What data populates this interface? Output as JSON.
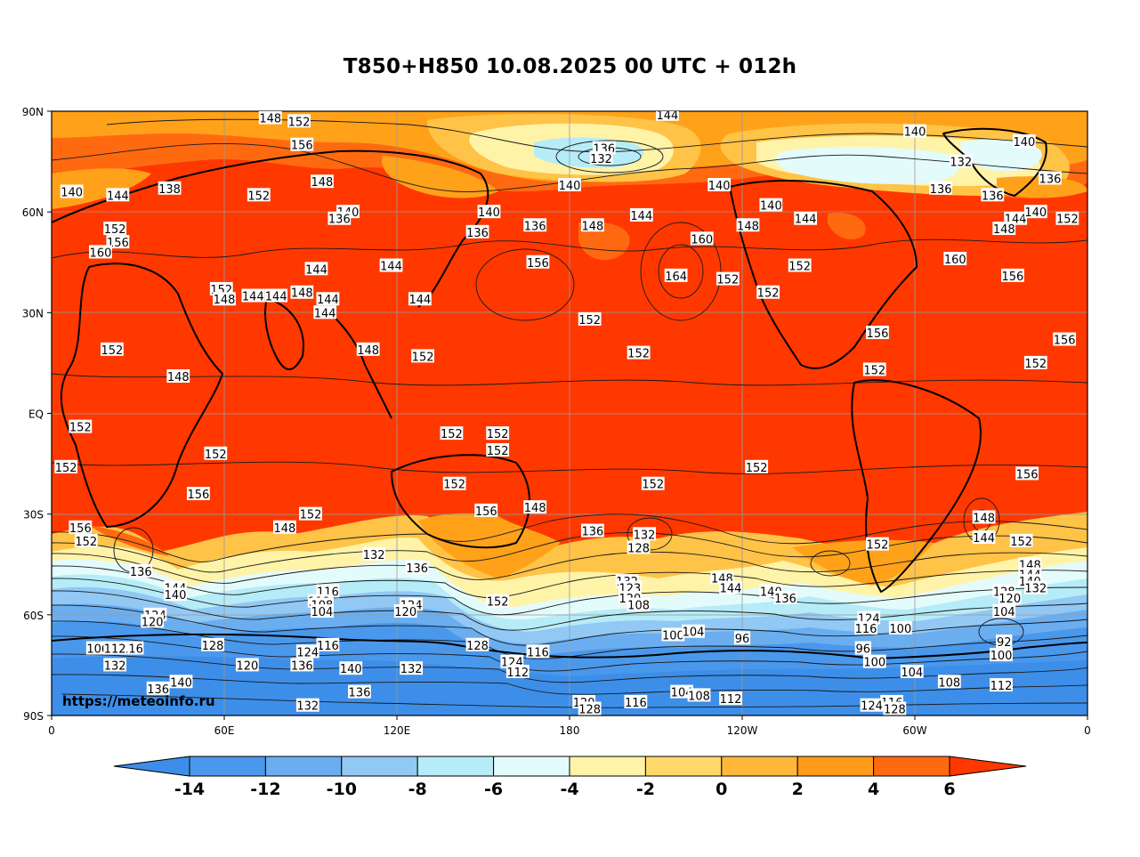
{
  "title": "T850+H850 10.08.2025 00 UTC + 012h",
  "watermark": "https://meteoinfo.ru",
  "lat_labels": [
    "90N",
    "60N",
    "30N",
    "EQ",
    "30S",
    "60S",
    "90S"
  ],
  "lon_labels": [
    "0",
    "60E",
    "120E",
    "180",
    "120W",
    "60W",
    "0"
  ],
  "colorbar": {
    "ticks": [
      "-14",
      "-12",
      "-10",
      "-8",
      "-6",
      "-4",
      "-2",
      "0",
      "2",
      "4",
      "6"
    ],
    "colors": [
      "#3d8ee8",
      "#4a98ec",
      "#6aaef0",
      "#92c8f4",
      "#b6ecf8",
      "#e4fbfc",
      "#fff3a8",
      "#ffd86a",
      "#ffb73a",
      "#ff9a1a",
      "#ff6a10",
      "#ff3800"
    ]
  },
  "field_colors": {
    "hot": "#ff3800",
    "warm": "#ff6a10",
    "orange": "#ffa21a",
    "gold": "#ffc347",
    "pale_yellow": "#fff3a8",
    "cyan_pale": "#e4fbfc",
    "cyan": "#b6ecf8",
    "light_blue": "#92c8f4",
    "blue": "#6aaef0",
    "deep_blue": "#4a98ec",
    "deepest": "#3d8ee8"
  },
  "contour_labels": [
    {
      "t": "148",
      "lon": 76,
      "lat": 88
    },
    {
      "t": "152",
      "lon": 86,
      "lat": 87
    },
    {
      "t": "144",
      "lon": 214,
      "lat": 89
    },
    {
      "t": "140",
      "lon": 300,
      "lat": 84
    },
    {
      "t": "156",
      "lon": 87,
      "lat": 80
    },
    {
      "t": "136",
      "lon": 192,
      "lat": 79
    },
    {
      "t": "132",
      "lon": 191,
      "lat": 76
    },
    {
      "t": "140",
      "lon": 338,
      "lat": 81
    },
    {
      "t": "132",
      "lon": 316,
      "lat": 75
    },
    {
      "t": "140",
      "lon": 7,
      "lat": 66
    },
    {
      "t": "144",
      "lon": 23,
      "lat": 65
    },
    {
      "t": "138",
      "lon": 41,
      "lat": 67
    },
    {
      "t": "152",
      "lon": 72,
      "lat": 65
    },
    {
      "t": "148",
      "lon": 94,
      "lat": 69
    },
    {
      "t": "140",
      "lon": 180,
      "lat": 68
    },
    {
      "t": "140",
      "lon": 232,
      "lat": 68
    },
    {
      "t": "136",
      "lon": 309,
      "lat": 67
    },
    {
      "t": "136",
      "lon": 327,
      "lat": 65
    },
    {
      "t": "136",
      "lon": 347,
      "lat": 70
    },
    {
      "t": "140",
      "lon": 103,
      "lat": 60
    },
    {
      "t": "136",
      "lon": 100,
      "lat": 58
    },
    {
      "t": "140",
      "lon": 152,
      "lat": 60
    },
    {
      "t": "144",
      "lon": 205,
      "lat": 59
    },
    {
      "t": "140",
      "lon": 250,
      "lat": 62
    },
    {
      "t": "144",
      "lon": 262,
      "lat": 58
    },
    {
      "t": "144",
      "lon": 335,
      "lat": 58
    },
    {
      "t": "140",
      "lon": 342,
      "lat": 60
    },
    {
      "t": "152",
      "lon": 353,
      "lat": 58
    },
    {
      "t": "152",
      "lon": 22,
      "lat": 55
    },
    {
      "t": "156",
      "lon": 23,
      "lat": 51
    },
    {
      "t": "136",
      "lon": 148,
      "lat": 54
    },
    {
      "t": "136",
      "lon": 168,
      "lat": 56
    },
    {
      "t": "148",
      "lon": 188,
      "lat": 56
    },
    {
      "t": "148",
      "lon": 242,
      "lat": 56
    },
    {
      "t": "160",
      "lon": 226,
      "lat": 52
    },
    {
      "t": "148",
      "lon": 331,
      "lat": 55
    },
    {
      "t": "160",
      "lon": 17,
      "lat": 48
    },
    {
      "t": "144",
      "lon": 118,
      "lat": 44
    },
    {
      "t": "144",
      "lon": 92,
      "lat": 43
    },
    {
      "t": "156",
      "lon": 169,
      "lat": 45
    },
    {
      "t": "164",
      "lon": 217,
      "lat": 41
    },
    {
      "t": "152",
      "lon": 235,
      "lat": 40
    },
    {
      "t": "152",
      "lon": 260,
      "lat": 44
    },
    {
      "t": "160",
      "lon": 314,
      "lat": 46
    },
    {
      "t": "156",
      "lon": 334,
      "lat": 41
    },
    {
      "t": "152",
      "lon": 249,
      "lat": 36
    },
    {
      "t": "152",
      "lon": 59,
      "lat": 37
    },
    {
      "t": "148",
      "lon": 60,
      "lat": 34
    },
    {
      "t": "144",
      "lon": 70,
      "lat": 35
    },
    {
      "t": "144",
      "lon": 78,
      "lat": 35
    },
    {
      "t": "148",
      "lon": 87,
      "lat": 36
    },
    {
      "t": "144",
      "lon": 96,
      "lat": 34
    },
    {
      "t": "144",
      "lon": 95,
      "lat": 30
    },
    {
      "t": "144",
      "lon": 128,
      "lat": 34
    },
    {
      "t": "152",
      "lon": 187,
      "lat": 28
    },
    {
      "t": "152",
      "lon": 21,
      "lat": 19
    },
    {
      "t": "148",
      "lon": 110,
      "lat": 19
    },
    {
      "t": "152",
      "lon": 129,
      "lat": 17
    },
    {
      "t": "152",
      "lon": 204,
      "lat": 18
    },
    {
      "t": "156",
      "lon": 287,
      "lat": 24
    },
    {
      "t": "156",
      "lon": 352,
      "lat": 22
    },
    {
      "t": "152",
      "lon": 342,
      "lat": 15
    },
    {
      "t": "152",
      "lon": 286,
      "lat": 13
    },
    {
      "t": "148",
      "lon": 44,
      "lat": 11
    },
    {
      "t": "152",
      "lon": 10,
      "lat": -4
    },
    {
      "t": "152",
      "lon": 139,
      "lat": -6
    },
    {
      "t": "152",
      "lon": 155,
      "lat": -6
    },
    {
      "t": "152",
      "lon": 155,
      "lat": -11
    },
    {
      "t": "152",
      "lon": 5,
      "lat": -16
    },
    {
      "t": "152",
      "lon": 57,
      "lat": -12
    },
    {
      "t": "152",
      "lon": 245,
      "lat": -16
    },
    {
      "t": "152",
      "lon": 209,
      "lat": -21
    },
    {
      "t": "156",
      "lon": 339,
      "lat": -18
    },
    {
      "t": "156",
      "lon": 51,
      "lat": -24
    },
    {
      "t": "152",
      "lon": 140,
      "lat": -21
    },
    {
      "t": "156",
      "lon": 151,
      "lat": -29
    },
    {
      "t": "148",
      "lon": 168,
      "lat": -28
    },
    {
      "t": "152",
      "lon": 90,
      "lat": -30
    },
    {
      "t": "148",
      "lon": 81,
      "lat": -34
    },
    {
      "t": "156",
      "lon": 10,
      "lat": -34
    },
    {
      "t": "152",
      "lon": 12,
      "lat": -38
    },
    {
      "t": "136",
      "lon": 188,
      "lat": -35
    },
    {
      "t": "132",
      "lon": 206,
      "lat": -36
    },
    {
      "t": "128",
      "lon": 204,
      "lat": -40
    },
    {
      "t": "148",
      "lon": 324,
      "lat": -31
    },
    {
      "t": "144",
      "lon": 324,
      "lat": -37
    },
    {
      "t": "152",
      "lon": 337,
      "lat": -38
    },
    {
      "t": "152",
      "lon": 287,
      "lat": -39
    },
    {
      "t": "136",
      "lon": 31,
      "lat": -47
    },
    {
      "t": "132",
      "lon": 112,
      "lat": -42
    },
    {
      "t": "136",
      "lon": 127,
      "lat": -46
    },
    {
      "t": "144",
      "lon": 43,
      "lat": -52
    },
    {
      "t": "140",
      "lon": 43,
      "lat": -54
    },
    {
      "t": "116",
      "lon": 96,
      "lat": -53
    },
    {
      "t": "112",
      "lon": 93,
      "lat": -56
    },
    {
      "t": "108",
      "lon": 94,
      "lat": -57
    },
    {
      "t": "104",
      "lon": 94,
      "lat": -59
    },
    {
      "t": "124",
      "lon": 125,
      "lat": -57
    },
    {
      "t": "120",
      "lon": 123,
      "lat": -59
    },
    {
      "t": "152",
      "lon": 155,
      "lat": -56
    },
    {
      "t": "132",
      "lon": 200,
      "lat": -50
    },
    {
      "t": "123",
      "lon": 201,
      "lat": -52
    },
    {
      "t": "120",
      "lon": 201,
      "lat": -55
    },
    {
      "t": "108",
      "lon": 204,
      "lat": -57
    },
    {
      "t": "148",
      "lon": 233,
      "lat": -49
    },
    {
      "t": "144",
      "lon": 236,
      "lat": -52
    },
    {
      "t": "140",
      "lon": 250,
      "lat": -53
    },
    {
      "t": "136",
      "lon": 255,
      "lat": -55
    },
    {
      "t": "148",
      "lon": 340,
      "lat": -45
    },
    {
      "t": "144",
      "lon": 340,
      "lat": -48
    },
    {
      "t": "140",
      "lon": 340,
      "lat": -50
    },
    {
      "t": "132",
      "lon": 342,
      "lat": -52
    },
    {
      "t": "128",
      "lon": 331,
      "lat": -53
    },
    {
      "t": "120",
      "lon": 333,
      "lat": -55
    },
    {
      "t": "124",
      "lon": 36,
      "lat": -60
    },
    {
      "t": "120",
      "lon": 35,
      "lat": -62
    },
    {
      "t": "104",
      "lon": 331,
      "lat": -59
    },
    {
      "t": "124",
      "lon": 284,
      "lat": -61
    },
    {
      "t": "116",
      "lon": 283,
      "lat": -64
    },
    {
      "t": "100",
      "lon": 295,
      "lat": -64
    },
    {
      "t": "100",
      "lon": 216,
      "lat": -66
    },
    {
      "t": "104",
      "lon": 223,
      "lat": -65
    },
    {
      "t": "96",
      "lon": 240,
      "lat": -67
    },
    {
      "t": "92",
      "lon": 331,
      "lat": -68
    },
    {
      "t": "116",
      "lon": 96,
      "lat": -69
    },
    {
      "t": "128",
      "lon": 56,
      "lat": -69
    },
    {
      "t": "124",
      "lon": 89,
      "lat": -71
    },
    {
      "t": "128",
      "lon": 148,
      "lat": -69
    },
    {
      "t": "116",
      "lon": 28,
      "lat": -70
    },
    {
      "t": "106",
      "lon": 16,
      "lat": -70
    },
    {
      "t": "112",
      "lon": 22,
      "lat": -70
    },
    {
      "t": "116",
      "lon": 169,
      "lat": -71
    },
    {
      "t": "96",
      "lon": 282,
      "lat": -70
    },
    {
      "t": "100",
      "lon": 286,
      "lat": -74
    },
    {
      "t": "100",
      "lon": 330,
      "lat": -72
    },
    {
      "t": "132",
      "lon": 22,
      "lat": -75
    },
    {
      "t": "120",
      "lon": 68,
      "lat": -75
    },
    {
      "t": "136",
      "lon": 87,
      "lat": -75
    },
    {
      "t": "140",
      "lon": 104,
      "lat": -76
    },
    {
      "t": "132",
      "lon": 125,
      "lat": -76
    },
    {
      "t": "124",
      "lon": 160,
      "lat": -74
    },
    {
      "t": "112",
      "lon": 162,
      "lat": -77
    },
    {
      "t": "104",
      "lon": 299,
      "lat": -77
    },
    {
      "t": "108",
      "lon": 312,
      "lat": -80
    },
    {
      "t": "112",
      "lon": 330,
      "lat": -81
    },
    {
      "t": "136",
      "lon": 37,
      "lat": -82
    },
    {
      "t": "140",
      "lon": 45,
      "lat": -80
    },
    {
      "t": "136",
      "lon": 107,
      "lat": -83
    },
    {
      "t": "104",
      "lon": 219,
      "lat": -83
    },
    {
      "t": "108",
      "lon": 225,
      "lat": -84
    },
    {
      "t": "112",
      "lon": 236,
      "lat": -85
    },
    {
      "t": "116",
      "lon": 203,
      "lat": -86
    },
    {
      "t": "120",
      "lon": 185,
      "lat": -86
    },
    {
      "t": "128",
      "lon": 187,
      "lat": -88
    },
    {
      "t": "116",
      "lon": 292,
      "lat": -86
    },
    {
      "t": "128",
      "lon": 293,
      "lat": -88
    },
    {
      "t": "124",
      "lon": 285,
      "lat": -87
    },
    {
      "t": "132",
      "lon": 89,
      "lat": -87
    }
  ]
}
